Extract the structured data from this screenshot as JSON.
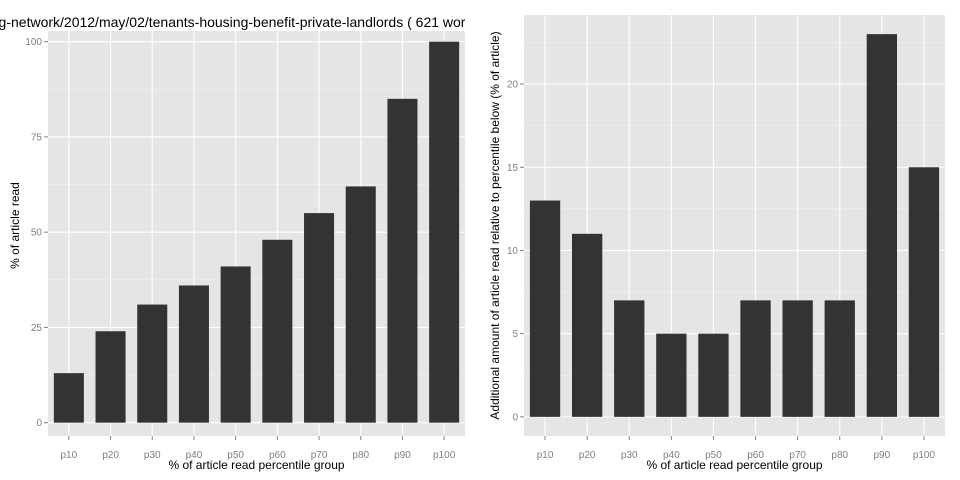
{
  "chart_data": [
    {
      "type": "bar",
      "title": "g-network/2012/may/02/tenants-housing-benefit-private-landlords ( 621 wor",
      "xlabel": "% of article read percentile group",
      "ylabel": "% of article read",
      "categories": [
        "p10",
        "p20",
        "p30",
        "p40",
        "p50",
        "p60",
        "p70",
        "p80",
        "p90",
        "p100"
      ],
      "values": [
        13,
        24,
        31,
        36,
        41,
        48,
        55,
        62,
        85,
        100
      ],
      "ylim": [
        -3.5,
        107
      ],
      "yticks": [
        0,
        25,
        50,
        75,
        100
      ],
      "grid": true,
      "bar_color": "#333333",
      "panel_color": "#e5e5e5"
    },
    {
      "type": "bar",
      "title": "",
      "xlabel": "% of article read percentile group",
      "ylabel": "Additional amount of article read relative to percentile below (% of article)",
      "categories": [
        "p10",
        "p20",
        "p30",
        "p40",
        "p50",
        "p60",
        "p70",
        "p80",
        "p90",
        "p100"
      ],
      "values": [
        13,
        11,
        7,
        5,
        5,
        7,
        7,
        7,
        23,
        15
      ],
      "ylim": [
        -1.15,
        24.15
      ],
      "yticks": [
        0,
        5,
        10,
        15,
        20
      ],
      "grid": true,
      "bar_color": "#333333",
      "panel_color": "#e5e5e5"
    }
  ]
}
